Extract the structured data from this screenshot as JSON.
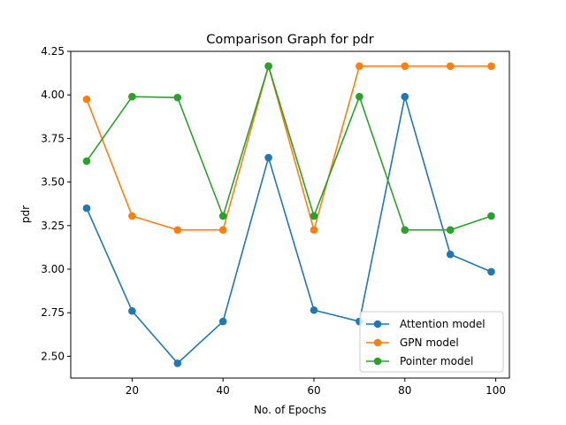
{
  "chart_data": {
    "type": "line",
    "title": "Comparison Graph for pdr",
    "xlabel": "No. of Epochs",
    "ylabel": "pdr",
    "xlim": [
      6.5,
      103
    ],
    "ylim": [
      2.375,
      4.25
    ],
    "x_ticks": [
      20,
      40,
      60,
      80,
      100
    ],
    "y_ticks": [
      2.5,
      2.75,
      3.0,
      3.25,
      3.5,
      3.75,
      4.0,
      4.25
    ],
    "y_tick_labels": [
      "2.50",
      "2.75",
      "3.00",
      "3.25",
      "3.50",
      "3.75",
      "4.00",
      "4.25"
    ],
    "grid": false,
    "legend_position": "lower-right",
    "x": [
      10,
      20,
      30,
      40,
      50,
      60,
      70,
      80,
      90,
      99
    ],
    "series": [
      {
        "name": "Attention model",
        "color": "#1f77b4",
        "values": [
          3.35,
          2.76,
          2.46,
          2.7,
          3.64,
          2.765,
          2.7,
          3.99,
          3.085,
          2.985
        ]
      },
      {
        "name": "GPN model",
        "color": "#ff7f0e",
        "values": [
          3.975,
          3.305,
          3.225,
          3.225,
          4.165,
          3.225,
          4.165,
          4.165,
          4.165,
          4.165
        ]
      },
      {
        "name": "Pointer model",
        "color": "#2ca02c",
        "values": [
          3.62,
          3.99,
          3.985,
          3.305,
          4.165,
          3.305,
          3.99,
          3.225,
          3.225,
          3.305
        ]
      }
    ]
  }
}
